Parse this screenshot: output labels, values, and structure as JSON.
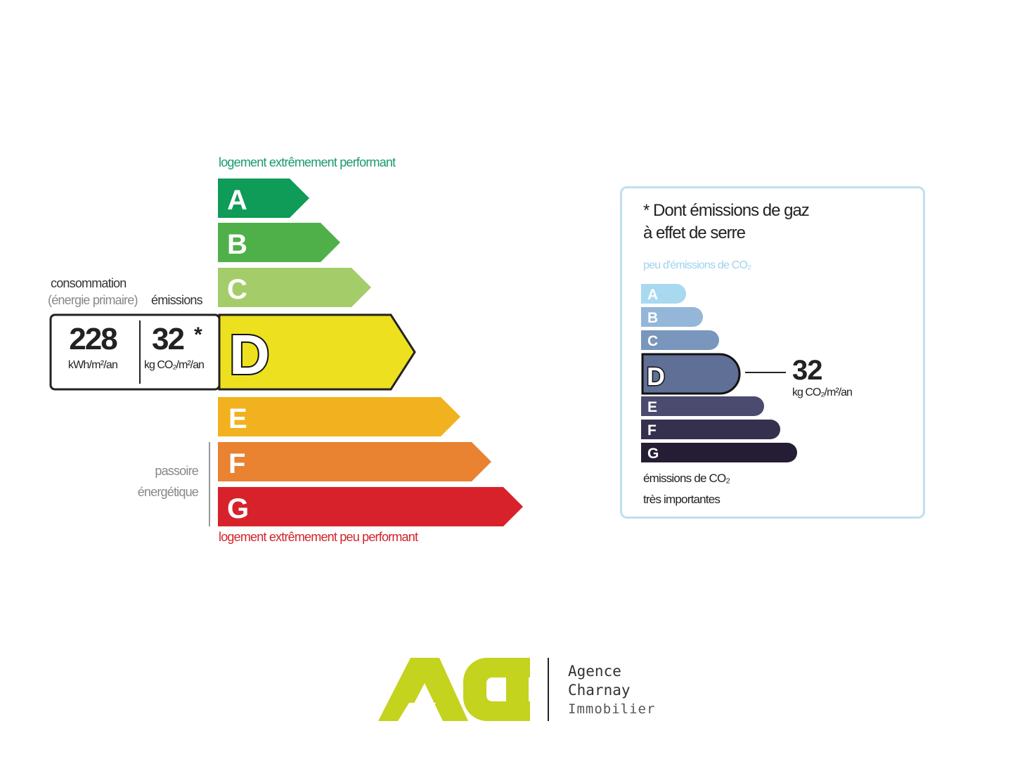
{
  "dpe": {
    "caption_top": "logement extrêmement performant",
    "caption_bottom": "logement extrêmement peu performant",
    "classes": [
      {
        "letter": "A",
        "color": "#0f9b58"
      },
      {
        "letter": "B",
        "color": "#4fb04a"
      },
      {
        "letter": "C",
        "color": "#a4cd6a"
      },
      {
        "letter": "D",
        "color": "#ede11f"
      },
      {
        "letter": "E",
        "color": "#f2b11e"
      },
      {
        "letter": "F",
        "color": "#e98331"
      },
      {
        "letter": "G",
        "color": "#d7222b"
      }
    ],
    "current_class": "D",
    "consumption_label": "consommation",
    "consumption_sublabel": "(énergie primaire)",
    "emissions_label": "émissions",
    "consumption_value": "228",
    "consumption_unit": "kWh/m²/an",
    "emissions_value": "32",
    "emissions_star": "*",
    "emissions_unit": "kg CO₂/m²/an",
    "passoire_line1": "passoire",
    "passoire_line2": "énergétique"
  },
  "ges": {
    "title_line1": "* Dont émissions de gaz",
    "title_line2": "à effet de serre",
    "caption_top": "peu d'émissions de CO₂",
    "caption_bottom_line1": "émissions de CO₂",
    "caption_bottom_line2": "très importantes",
    "classes": [
      {
        "letter": "A",
        "color": "#a9d8f1"
      },
      {
        "letter": "B",
        "color": "#93b6d9"
      },
      {
        "letter": "C",
        "color": "#7a96bd"
      },
      {
        "letter": "D",
        "color": "#5f6f96"
      },
      {
        "letter": "E",
        "color": "#4a4b6e"
      },
      {
        "letter": "F",
        "color": "#36304f"
      },
      {
        "letter": "G",
        "color": "#241d34"
      }
    ],
    "current_class": "D",
    "value": "32",
    "unit": "kg CO₂/m²/an"
  },
  "logo": {
    "mark": "ACI",
    "line1": "Agence",
    "line2": "Charnay",
    "line3": "Immobilier",
    "color": "#c3d31e"
  }
}
